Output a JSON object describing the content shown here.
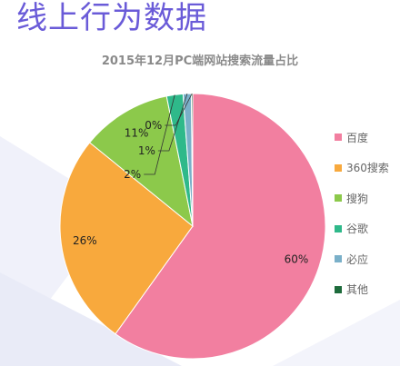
{
  "header": {
    "title": "线上行为数据",
    "title_color": "#6a5bd8"
  },
  "chart_data": {
    "type": "pie",
    "title": "2015年12月PC端网站搜索流量占比",
    "title_color": "#8a8a8a",
    "categories": [
      "百度",
      "360搜索",
      "搜狗",
      "谷歌",
      "必应",
      "其他"
    ],
    "values": [
      60,
      26,
      11,
      2,
      1,
      0
    ],
    "value_labels": [
      "60%",
      "26%",
      "11%",
      "2%",
      "1%",
      "0%"
    ],
    "colors": [
      "#f27fa0",
      "#f8a93d",
      "#8cc94b",
      "#2fb98a",
      "#7ab0c9",
      "#1d6b3b"
    ],
    "legend_position": "right"
  }
}
